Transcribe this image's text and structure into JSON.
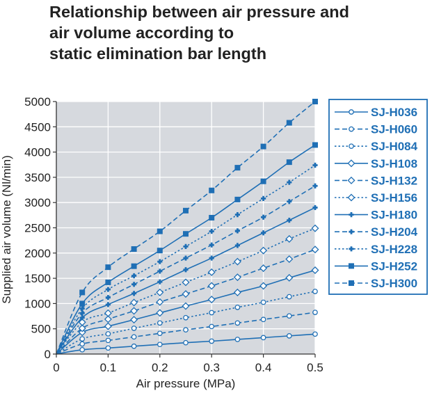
{
  "chart_data": {
    "type": "line",
    "title_lines": [
      "Relationship between air pressure and",
      "air volume according to",
      "static elimination bar length"
    ],
    "xlabel": "Air pressure (MPa)",
    "ylabel": "Supplied air volume (Nl/min)",
    "xlim": [
      0,
      0.5
    ],
    "ylim": [
      0,
      5000
    ],
    "xticks": [
      0,
      0.1,
      0.2,
      0.3,
      0.4,
      0.5
    ],
    "xtick_labels": [
      "0",
      "0.1",
      "0.2",
      "0.3",
      "0.4",
      "0.5"
    ],
    "yticks": [
      0,
      500,
      1000,
      1500,
      2000,
      2500,
      3000,
      3500,
      4000,
      4500,
      5000
    ],
    "ytick_labels": [
      "0",
      "500",
      "1000",
      "1500",
      "2000",
      "2500",
      "3000",
      "3500",
      "4000",
      "4500",
      "5000"
    ],
    "grid": true,
    "legend_position": "right",
    "colors": {
      "line": "#1f6fb5",
      "plot_bg": "#d6d9de",
      "grid": "#ffffff",
      "axis": "#333333",
      "text": "#222222"
    },
    "x": [
      0,
      0.05,
      0.1,
      0.15,
      0.2,
      0.25,
      0.3,
      0.35,
      0.4,
      0.45,
      0.5
    ],
    "series": [
      {
        "name": "SJ-H036",
        "line_style": "solid",
        "marker": "circle",
        "values": [
          0,
          85,
          120,
          155,
          190,
          225,
          255,
          290,
          325,
          360,
          395
        ]
      },
      {
        "name": "SJ-H060",
        "line_style": "dashed",
        "marker": "circle",
        "values": [
          0,
          200,
          270,
          340,
          410,
          480,
          545,
          615,
          685,
          755,
          825
        ]
      },
      {
        "name": "SJ-H084",
        "line_style": "dotted",
        "marker": "circle",
        "values": [
          0,
          300,
          400,
          510,
          615,
          720,
          820,
          925,
          1025,
          1135,
          1240
        ]
      },
      {
        "name": "SJ-H108",
        "line_style": "solid",
        "marker": "diamond",
        "values": [
          0,
          430,
          550,
          680,
          815,
          950,
          1080,
          1220,
          1350,
          1510,
          1660
        ]
      },
      {
        "name": "SJ-H132",
        "line_style": "dashed",
        "marker": "diamond",
        "values": [
          0,
          510,
          690,
          855,
          1030,
          1190,
          1350,
          1520,
          1700,
          1880,
          2070
        ]
      },
      {
        "name": "SJ-H156",
        "line_style": "dotted",
        "marker": "diamond",
        "values": [
          0,
          630,
          810,
          1020,
          1220,
          1420,
          1620,
          1830,
          2050,
          2280,
          2490
        ]
      },
      {
        "name": "SJ-H180",
        "line_style": "solid",
        "marker": "plus",
        "values": [
          0,
          720,
          980,
          1200,
          1430,
          1670,
          1900,
          2150,
          2400,
          2650,
          2900
        ]
      },
      {
        "name": "SJ-H204",
        "line_style": "dashed",
        "marker": "plus",
        "values": [
          0,
          810,
          1120,
          1380,
          1640,
          1900,
          2160,
          2440,
          2710,
          3020,
          3330
        ]
      },
      {
        "name": "SJ-H228",
        "line_style": "dotted",
        "marker": "plus",
        "values": [
          0,
          900,
          1280,
          1550,
          1830,
          2130,
          2430,
          2760,
          3080,
          3400,
          3740
        ]
      },
      {
        "name": "SJ-H252",
        "line_style": "solid",
        "marker": "square",
        "values": [
          0,
          1000,
          1420,
          1740,
          2050,
          2380,
          2700,
          3060,
          3420,
          3800,
          4140
        ]
      },
      {
        "name": "SJ-H300",
        "line_style": "dashed",
        "marker": "square",
        "values": [
          0,
          1220,
          1720,
          2080,
          2430,
          2840,
          3240,
          3690,
          4110,
          4580,
          5000
        ]
      }
    ]
  }
}
